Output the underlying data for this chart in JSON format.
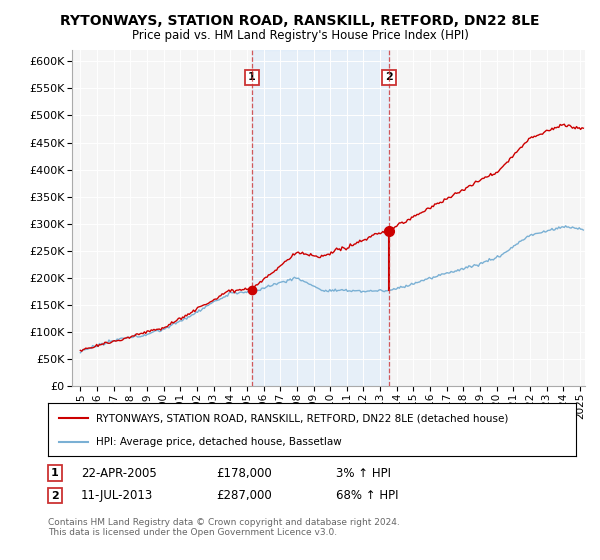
{
  "title": "RYTONWAYS, STATION ROAD, RANSKILL, RETFORD, DN22 8LE",
  "subtitle": "Price paid vs. HM Land Registry's House Price Index (HPI)",
  "ylim": [
    0,
    620000
  ],
  "yticks": [
    0,
    50000,
    100000,
    150000,
    200000,
    250000,
    300000,
    350000,
    400000,
    450000,
    500000,
    550000,
    600000
  ],
  "sale1_date": 2005.3,
  "sale1_price": 178000,
  "sale2_date": 2013.53,
  "sale2_price": 287000,
  "line_color_red": "#cc0000",
  "line_color_blue": "#7ab0d4",
  "vline_color": "#cc3333",
  "shade_color": "#ddeeff",
  "background_color": "#ffffff",
  "plot_bg_color": "#f5f5f5",
  "legend_entry1": "RYTONWAYS, STATION ROAD, RANSKILL, RETFORD, DN22 8LE (detached house)",
  "legend_entry2": "HPI: Average price, detached house, Bassetlaw",
  "footer": "Contains HM Land Registry data © Crown copyright and database right 2024.\nThis data is licensed under the Open Government Licence v3.0.",
  "xmin": 1994.5,
  "xmax": 2025.3
}
